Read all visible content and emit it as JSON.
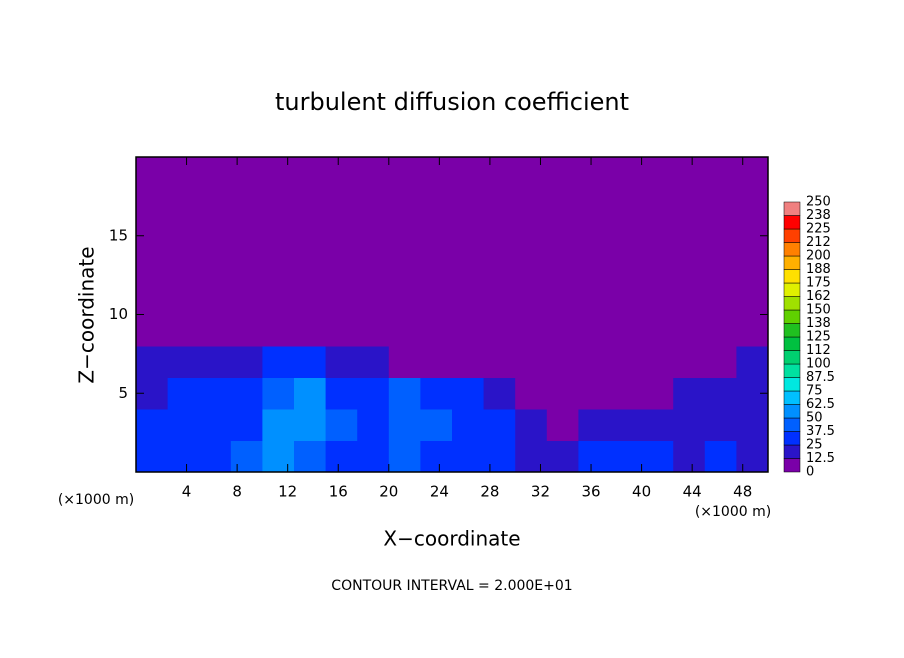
{
  "chart_data": {
    "type": "heatmap",
    "title": "turbulent diffusion coefficient",
    "x_label": "X−coordinate",
    "y_label": "Z−coordinate",
    "x_unit": "(×1000 m)",
    "z_unit": "(×1000 m)",
    "footnote": "CONTOUR INTERVAL = 2.000E+01",
    "xlim": [
      0,
      50
    ],
    "ylim": [
      0,
      20
    ],
    "xticks": [
      4,
      8,
      12,
      16,
      20,
      24,
      28,
      32,
      36,
      40,
      44,
      48
    ],
    "yticks": [
      5,
      10,
      15
    ],
    "x": [
      1.25,
      3.75,
      6.25,
      8.75,
      11.25,
      13.75,
      16.25,
      18.75,
      21.25,
      23.75,
      26.25,
      28.75,
      31.25,
      33.75,
      36.25,
      38.75,
      41.25,
      43.75,
      46.25,
      48.75
    ],
    "y": [
      1,
      3,
      5,
      7,
      9,
      11,
      13,
      15,
      17,
      19
    ],
    "values": [
      [
        30,
        35,
        30,
        40,
        55,
        45,
        35,
        30,
        40,
        35,
        30,
        25,
        20,
        15,
        30,
        25,
        25,
        20,
        25,
        20
      ],
      [
        25,
        30,
        30,
        35,
        60,
        55,
        40,
        35,
        45,
        40,
        35,
        25,
        15,
        10,
        20,
        15,
        20,
        15,
        20,
        20
      ],
      [
        20,
        25,
        25,
        30,
        45,
        50,
        35,
        35,
        40,
        30,
        30,
        20,
        5,
        5,
        10,
        5,
        10,
        15,
        20,
        15
      ],
      [
        15,
        15,
        15,
        20,
        30,
        35,
        20,
        20,
        10,
        5,
        0,
        0,
        0,
        0,
        0,
        0,
        0,
        0,
        0,
        15
      ],
      [
        0,
        0,
        0,
        0,
        10,
        10,
        5,
        0,
        0,
        0,
        0,
        0,
        0,
        0,
        0,
        0,
        0,
        0,
        0,
        0
      ],
      [
        0,
        0,
        0,
        0,
        0,
        0,
        0,
        0,
        0,
        0,
        0,
        0,
        0,
        0,
        0,
        0,
        0,
        0,
        0,
        0
      ],
      [
        0,
        0,
        0,
        0,
        0,
        0,
        0,
        0,
        0,
        0,
        0,
        0,
        0,
        0,
        0,
        0,
        0,
        0,
        0,
        0
      ],
      [
        0,
        0,
        0,
        0,
        0,
        0,
        0,
        0,
        0,
        0,
        0,
        0,
        0,
        0,
        0,
        0,
        0,
        0,
        0,
        0
      ],
      [
        0,
        0,
        0,
        0,
        0,
        0,
        0,
        0,
        0,
        0,
        0,
        0,
        0,
        0,
        0,
        0,
        0,
        0,
        0,
        0
      ],
      [
        0,
        0,
        0,
        0,
        0,
        0,
        0,
        0,
        0,
        0,
        0,
        0,
        0,
        0,
        0,
        0,
        0,
        0,
        0,
        0
      ]
    ],
    "colorbar_ticks": [
      0,
      12.5,
      25,
      37.5,
      50,
      62.5,
      75,
      87.5,
      100,
      {
        "value": 112.5,
        "label": "112"
      },
      125,
      {
        "value": 137.5,
        "label": "138"
      },
      150,
      {
        "value": 162.5,
        "label": "162"
      },
      175,
      {
        "value": 187.5,
        "label": "188"
      },
      200,
      {
        "value": 212.5,
        "label": "212"
      },
      225,
      {
        "value": 237.5,
        "label": "238"
      },
      250
    ],
    "colors": [
      "#7a00a8",
      "#2a14c8",
      "#0030ff",
      "#0060ff",
      "#0090ff",
      "#00c0ff",
      "#00e8e0",
      "#00e0a0",
      "#00d070",
      "#00c040",
      "#20c020",
      "#60d000",
      "#a0e000",
      "#e0f000",
      "#ffe000",
      "#ffb000",
      "#ff8000",
      "#ff4000",
      "#ff0000",
      "#f08080"
    ]
  }
}
